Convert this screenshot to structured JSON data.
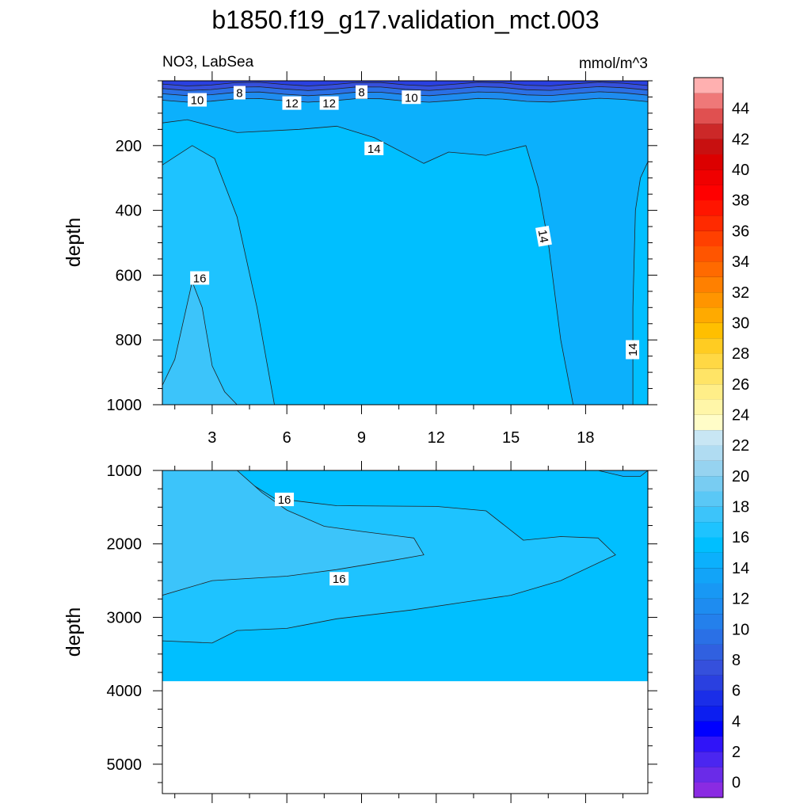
{
  "chart_data": {
    "type": "heatmap",
    "title": "b1850.f19_g17.validation_mct.003",
    "subtitle_left": "NO3, LabSea",
    "subtitle_right": "mmol/m^3",
    "xlabel": "",
    "ylabel": "depth",
    "x_range": [
      1,
      20.5
    ],
    "x_ticks": [
      "3",
      "6",
      "9",
      "12",
      "15",
      "18"
    ],
    "upper_panel": {
      "y_range": [
        0,
        1000
      ],
      "y_ticks": [
        "200",
        "400",
        "600",
        "800",
        "1000"
      ],
      "contour_labels": [
        {
          "text": "8",
          "x": 4.1,
          "y": 38
        },
        {
          "text": "8",
          "x": 9.0,
          "y": 36
        },
        {
          "text": "10",
          "x": 2.4,
          "y": 60
        },
        {
          "text": "10",
          "x": 11.0,
          "y": 52
        },
        {
          "text": "12",
          "x": 6.2,
          "y": 70
        },
        {
          "text": "12",
          "x": 7.7,
          "y": 70
        },
        {
          "text": "14",
          "x": 9.5,
          "y": 210
        },
        {
          "text": "14",
          "x": 16.3,
          "y": 480
        },
        {
          "text": "16",
          "x": 2.5,
          "y": 610
        },
        {
          "text": "14",
          "x": 19.9,
          "y": 830
        }
      ]
    },
    "lower_panel": {
      "y_range": [
        1000,
        5400
      ],
      "y_ticks": [
        "1000",
        "2000",
        "3000",
        "4000",
        "5000"
      ],
      "bottom_depth": 3870,
      "contour_labels": [
        {
          "text": "16",
          "x": 5.9,
          "y": 1400
        },
        {
          "text": "16",
          "x": 8.1,
          "y": 2480
        }
      ]
    },
    "colorbar": {
      "range": [
        -1,
        46
      ],
      "step": 1,
      "tick_labels": [
        "0",
        "2",
        "4",
        "6",
        "8",
        "10",
        "12",
        "14",
        "16",
        "18",
        "20",
        "22",
        "24",
        "26",
        "28",
        "30",
        "32",
        "34",
        "36",
        "38",
        "40",
        "42",
        "44"
      ],
      "colors": [
        "#8a2be2",
        "#6a2be8",
        "#4b26f0",
        "#3014f8",
        "#0000ff",
        "#0c1ef0",
        "#1a2ee8",
        "#2a40e0",
        "#3550dc",
        "#3060e0",
        "#2a70e6",
        "#2480ec",
        "#1e8cf0",
        "#1898f4",
        "#12a4f8",
        "#0cb0fc",
        "#00bfff",
        "#1ec3ff",
        "#3cc4fa",
        "#5ac8f6",
        "#78ccf2",
        "#96d3f0",
        "#b0dcf2",
        "#c8e6f4",
        "#fffdc8",
        "#fff6a8",
        "#ffee88",
        "#ffe466",
        "#ffd844",
        "#ffcc22",
        "#ffbf00",
        "#ffaa00",
        "#ff9500",
        "#ff8000",
        "#ff6a00",
        "#ff5500",
        "#ff4000",
        "#ff2a00",
        "#ff1500",
        "#ff0000",
        "#f00000",
        "#dc0000",
        "#c81010",
        "#cc2828",
        "#e05050",
        "#ef7878",
        "#ffb0b0"
      ]
    },
    "colors": {
      "deep": "#0cb0fc",
      "band14": "#00bfff",
      "band16": "#1ec3ff",
      "band18": "#3cc4fa",
      "surf6": "#2a40e0",
      "surf8": "#3550dc",
      "surf10": "#2a70e6",
      "surf12": "#1e8cf0"
    }
  }
}
